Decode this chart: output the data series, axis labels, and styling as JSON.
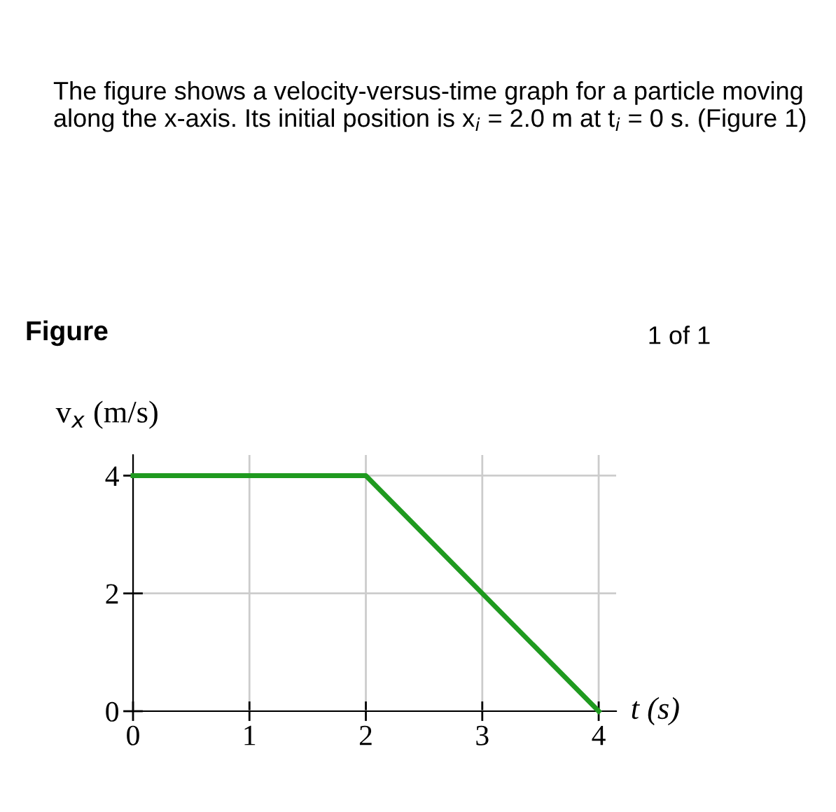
{
  "chart_data": {
    "type": "line",
    "title": "The figure shows a velocity-versus-time graph for a particle moving along the x-axis. Its initial position is x$_{i}$ = 2.0 m at t$_{i}$ = 0 s. (Figure 1)",
    "subtitle": "Figure",
    "annotations": [
      "1 of 1"
    ],
    "xlabel": "t (s)",
    "ylabel": "v$_{x}$ (m/s)",
    "x": [
      0,
      2,
      4
    ],
    "series": [
      {
        "color": "#1f9a1f",
        "values": [
          4,
          4,
          0
        ]
      }
    ],
    "xlim": [
      0,
      4.15
    ],
    "ylim": [
      0,
      4.35
    ],
    "xticks": [
      0,
      1,
      2,
      3,
      4
    ],
    "yticks": [
      0,
      2,
      4
    ],
    "grid": true,
    "marker": "none",
    "line_style": "solid"
  }
}
